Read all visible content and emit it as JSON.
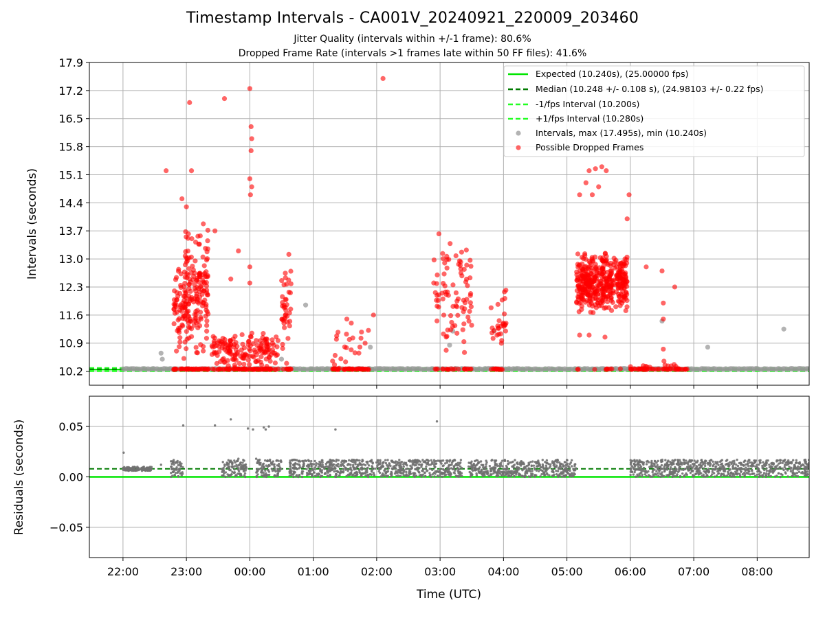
{
  "figure": {
    "title": "Timestamp Intervals - CA001V_20240921_220009_203460",
    "subtitle_1": "Jitter Quality (intervals within +/-1 frame): 80.6%",
    "subtitle_2": "Dropped Frame Rate (intervals >1 frames late within 50 FF files): 41.6%"
  },
  "colors": {
    "expected": "#00e600",
    "median": "#007a00",
    "interval_bounds": "#22ff22",
    "intervals": "#999999",
    "dropped": "#ff0000",
    "residuals": "#707070",
    "grid": "#b0b0b0"
  },
  "chart_data": [
    {
      "type": "scatter",
      "panel": "top",
      "xlabel": "",
      "ylabel": "Intervals (seconds)",
      "ylim": [
        9.85,
        17.9
      ],
      "yticks": [
        "10.2",
        "10.9",
        "11.6",
        "12.3",
        "13.0",
        "13.7",
        "14.4",
        "15.1",
        "15.8",
        "16.5",
        "17.2",
        "17.9"
      ],
      "x_tick_labels": [
        "22:00",
        "23:00",
        "00:00",
        "01:00",
        "02:00",
        "03:00",
        "04:00",
        "05:00",
        "06:00",
        "07:00",
        "08:00"
      ],
      "x_range_hours": [
        21.47,
        32.82
      ],
      "grid": true,
      "legend_position": "top-right",
      "legend": [
        {
          "label": "Expected (10.240s), (25.00000 fps)",
          "style": "solid",
          "color": "#00e600"
        },
        {
          "label": "Median (10.248 +/- 0.108 s), (24.98103 +/- 0.22 fps)",
          "style": "dashed",
          "color": "#007a00"
        },
        {
          "label": "-1/fps Interval (10.200s)",
          "style": "dashed",
          "color": "#22ff22"
        },
        {
          "label": "+1/fps Interval (10.280s)",
          "style": "dashed",
          "color": "#22ff22"
        },
        {
          "label": "Intervals, max (17.495s), min (10.240s)",
          "style": "marker",
          "color": "#999999"
        },
        {
          "label": "Possible Dropped Frames",
          "style": "marker",
          "color": "#ff0000"
        }
      ],
      "reference_lines": {
        "expected": 10.24,
        "median": 10.248,
        "lower": 10.2,
        "upper": 10.28
      },
      "clusters": [
        {
          "t_start": 22.8,
          "t_end": 22.98,
          "y_min": 10.5,
          "y_max": 13.0,
          "count": 55,
          "base_count": 12
        },
        {
          "t_start": 22.97,
          "t_end": 23.35,
          "y_min": 10.4,
          "y_max": 14.0,
          "count": 170,
          "base_count": 30
        },
        {
          "t_start": 23.4,
          "t_end": 24.45,
          "y_min": 10.24,
          "y_max": 11.2,
          "count": 160,
          "base_count": 70
        },
        {
          "t_start": 24.5,
          "t_end": 24.65,
          "y_min": 10.3,
          "y_max": 13.4,
          "count": 40,
          "base_count": 10
        },
        {
          "t_start": 25.3,
          "t_end": 25.9,
          "y_min": 10.24,
          "y_max": 11.3,
          "count": 22,
          "base_count": 45
        },
        {
          "t_start": 26.9,
          "t_end": 27.5,
          "y_min": 10.3,
          "y_max": 13.7,
          "count": 85,
          "base_count": 20
        },
        {
          "t_start": 27.8,
          "t_end": 28.05,
          "y_min": 10.3,
          "y_max": 12.4,
          "count": 28,
          "base_count": 15
        },
        {
          "t_start": 29.15,
          "t_end": 29.95,
          "y_min": 11.6,
          "y_max": 13.2,
          "count": 420,
          "base_count": 10
        },
        {
          "t_start": 30.0,
          "t_end": 30.9,
          "y_min": 10.24,
          "y_max": 10.4,
          "count": 10,
          "base_count": 50
        }
      ],
      "dropped_outliers": [
        {
          "t": 22.68,
          "y": 15.2
        },
        {
          "t": 23.05,
          "y": 16.9
        },
        {
          "t": 23.08,
          "y": 15.2
        },
        {
          "t": 22.93,
          "y": 14.5
        },
        {
          "t": 23.0,
          "y": 14.3
        },
        {
          "t": 23.6,
          "y": 17.0
        },
        {
          "t": 24.0,
          "y": 17.25
        },
        {
          "t": 24.02,
          "y": 16.3
        },
        {
          "t": 24.03,
          "y": 16.0
        },
        {
          "t": 24.02,
          "y": 15.7
        },
        {
          "t": 24.0,
          "y": 15.0
        },
        {
          "t": 24.03,
          "y": 14.8
        },
        {
          "t": 24.01,
          "y": 14.6
        },
        {
          "t": 26.1,
          "y": 17.5
        },
        {
          "t": 23.45,
          "y": 13.7
        },
        {
          "t": 23.82,
          "y": 13.2
        },
        {
          "t": 23.7,
          "y": 12.5
        },
        {
          "t": 24.0,
          "y": 12.4
        },
        {
          "t": 24.0,
          "y": 12.8
        },
        {
          "t": 25.53,
          "y": 11.5
        },
        {
          "t": 25.6,
          "y": 11.4
        },
        {
          "t": 25.95,
          "y": 11.6
        },
        {
          "t": 26.9,
          "y": 12.4
        },
        {
          "t": 29.2,
          "y": 14.6
        },
        {
          "t": 29.3,
          "y": 14.9
        },
        {
          "t": 29.35,
          "y": 15.2
        },
        {
          "t": 29.45,
          "y": 15.25
        },
        {
          "t": 29.55,
          "y": 15.3
        },
        {
          "t": 29.62,
          "y": 15.2
        },
        {
          "t": 29.5,
          "y": 14.8
        },
        {
          "t": 29.4,
          "y": 14.6
        },
        {
          "t": 29.98,
          "y": 14.6
        },
        {
          "t": 29.95,
          "y": 14.0
        },
        {
          "t": 30.25,
          "y": 12.8
        },
        {
          "t": 30.5,
          "y": 12.7
        },
        {
          "t": 30.7,
          "y": 12.3
        },
        {
          "t": 30.52,
          "y": 11.9
        },
        {
          "t": 30.52,
          "y": 11.5
        },
        {
          "t": 30.52,
          "y": 10.75
        },
        {
          "t": 30.53,
          "y": 10.45
        },
        {
          "t": 29.2,
          "y": 11.1
        },
        {
          "t": 29.35,
          "y": 11.1
        },
        {
          "t": 29.6,
          "y": 11.05
        }
      ],
      "gray_outliers": [
        {
          "t": 22.62,
          "y": 10.5
        },
        {
          "t": 22.6,
          "y": 10.65
        },
        {
          "t": 24.5,
          "y": 10.5
        },
        {
          "t": 24.88,
          "y": 11.85
        },
        {
          "t": 25.9,
          "y": 10.8
        },
        {
          "t": 27.15,
          "y": 10.85
        },
        {
          "t": 27.2,
          "y": 11.2
        },
        {
          "t": 27.85,
          "y": 11.2
        },
        {
          "t": 30.5,
          "y": 11.45
        },
        {
          "t": 31.22,
          "y": 10.8
        },
        {
          "t": 32.42,
          "y": 11.25
        }
      ]
    },
    {
      "type": "scatter",
      "panel": "bottom",
      "xlabel": "Time (UTC)",
      "ylabel": "Residuals (seconds)",
      "ylim": [
        -0.08,
        0.08
      ],
      "yticks": [
        "−0.05",
        "0.00",
        "0.05"
      ],
      "x_tick_labels": [
        "22:00",
        "23:00",
        "00:00",
        "01:00",
        "02:00",
        "03:00",
        "04:00",
        "05:00",
        "06:00",
        "07:00",
        "08:00"
      ],
      "grid": true,
      "reference_lines": {
        "zero": 0.0,
        "median_offset": 0.008
      },
      "segments": [
        {
          "t_start": 22.0,
          "t_end": 22.45,
          "y_low": 0.006,
          "y_high": 0.01
        },
        {
          "t_start": 22.75,
          "t_end": 22.95,
          "y_low": 0.0,
          "y_high": 0.017
        },
        {
          "t_start": 23.55,
          "t_end": 23.95,
          "y_low": 0.0,
          "y_high": 0.017
        },
        {
          "t_start": 24.1,
          "t_end": 24.5,
          "y_low": 0.0,
          "y_high": 0.017
        },
        {
          "t_start": 24.62,
          "t_end": 26.5,
          "y_low": 0.0,
          "y_high": 0.017
        },
        {
          "t_start": 26.5,
          "t_end": 27.35,
          "y_low": 0.0,
          "y_high": 0.017
        },
        {
          "t_start": 27.45,
          "t_end": 29.15,
          "y_low": 0.0,
          "y_high": 0.017
        },
        {
          "t_start": 30.0,
          "t_end": 32.82,
          "y_low": 0.0,
          "y_high": 0.017
        }
      ],
      "outliers": [
        {
          "t": 22.01,
          "y": 0.024
        },
        {
          "t": 22.6,
          "y": 0.012
        },
        {
          "t": 22.95,
          "y": 0.051
        },
        {
          "t": 23.45,
          "y": 0.051
        },
        {
          "t": 23.7,
          "y": 0.057
        },
        {
          "t": 23.97,
          "y": 0.048
        },
        {
          "t": 24.05,
          "y": 0.047
        },
        {
          "t": 24.22,
          "y": 0.049
        },
        {
          "t": 24.25,
          "y": 0.047
        },
        {
          "t": 24.3,
          "y": 0.05
        },
        {
          "t": 25.35,
          "y": 0.047
        },
        {
          "t": 26.95,
          "y": 0.055
        },
        {
          "t": 23.82,
          "y": 0.018
        },
        {
          "t": 24.1,
          "y": 0.018
        }
      ]
    }
  ]
}
